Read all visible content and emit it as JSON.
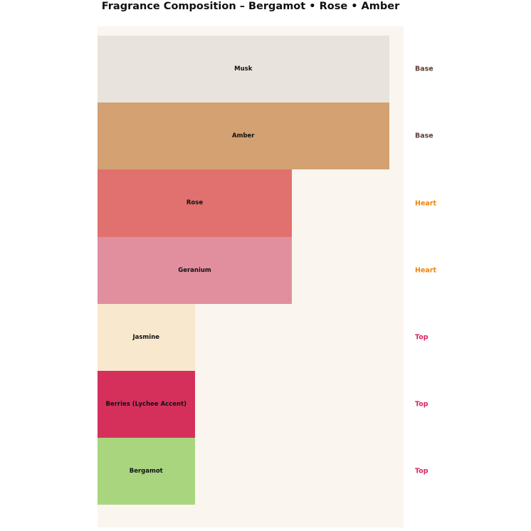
{
  "chart_data": {
    "type": "bar",
    "orientation": "horizontal",
    "title": "Fragrance Composition – Bergamot • Rose • Amber",
    "categories": [
      "Musk",
      "Amber",
      "Rose",
      "Geranium",
      "Jasmine",
      "Berries (Lychee Accent)",
      "Bergamot"
    ],
    "values": [
      30,
      30,
      20,
      20,
      10,
      10,
      10
    ],
    "stages": [
      "Base",
      "Base",
      "Heart",
      "Heart",
      "Top",
      "Top",
      "Top"
    ],
    "xlim": [
      0,
      31.5
    ],
    "grid": false,
    "axes_visible": false,
    "legend": "none",
    "plot_background": "#faf5ee",
    "page_background": "#ffffff",
    "title_color": "#111111",
    "bar_label_color": "#111111",
    "notes": [
      {
        "label": "Musk",
        "stage": "Base",
        "value": 30,
        "color": "#e8e4dd"
      },
      {
        "label": "Amber",
        "stage": "Base",
        "value": 30,
        "color": "#d3a172"
      },
      {
        "label": "Rose",
        "stage": "Heart",
        "value": 20,
        "color": "#e0716e"
      },
      {
        "label": "Geranium",
        "stage": "Heart",
        "value": 20,
        "color": "#e18f9e"
      },
      {
        "label": "Jasmine",
        "stage": "Top",
        "value": 10,
        "color": "#f8e8cd"
      },
      {
        "label": "Berries (Lychee Accent)",
        "stage": "Top",
        "value": 10,
        "color": "#d5305c"
      },
      {
        "label": "Bergamot",
        "stage": "Top",
        "value": 10,
        "color": "#a8d57e"
      }
    ],
    "stage_colors": {
      "Base": "#5d4037",
      "Heart": "#ee850d",
      "Top": "#d92563"
    }
  }
}
